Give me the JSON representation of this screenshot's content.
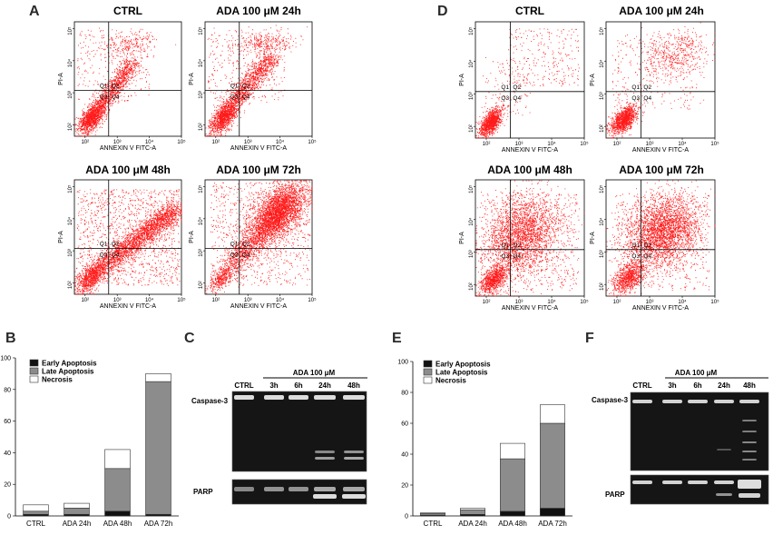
{
  "panels": {
    "A": "A",
    "B": "B",
    "C": "C",
    "D": "D",
    "E": "E",
    "F": "F"
  },
  "flow_plots": {
    "x_axis_label": "ANNEXIN V FITC-A",
    "y_axis_label": "PI-A",
    "tick_labels": [
      "10²",
      "10³",
      "10⁴",
      "10⁵"
    ],
    "quadrant_labels": [
      "Q1",
      "Q2",
      "Q3",
      "Q4"
    ],
    "set_A": [
      {
        "title": "CTRL"
      },
      {
        "title": "ADA 100 μM 24h"
      },
      {
        "title": "ADA 100 μM 48h"
      },
      {
        "title": "ADA 100 μM 72h"
      }
    ],
    "set_D": [
      {
        "title": "CTRL"
      },
      {
        "title": "ADA 100 μM 24h"
      },
      {
        "title": "ADA 100 μM 48h"
      },
      {
        "title": "ADA 100 μM 72h"
      }
    ]
  },
  "colors": {
    "dots": "#ff1a1a",
    "early": "#111111",
    "late": "#8c8c8c",
    "necrosis": "#ffffff",
    "gel": "#151515",
    "band": "#e8e8e8"
  },
  "chart_data": [
    {
      "type": "bar",
      "panel": "B",
      "stacked": true,
      "categories": [
        "CTRL",
        "ADA 24h",
        "ADA 48h",
        "ADA 72h"
      ],
      "series": [
        {
          "name": "Early Apoptosis",
          "values": [
            1,
            1,
            3,
            1
          ]
        },
        {
          "name": "Late Apoptosis",
          "values": [
            2,
            4,
            27,
            84
          ]
        },
        {
          "name": "Necrosis",
          "values": [
            4,
            3,
            12,
            5
          ]
        }
      ],
      "ylim": [
        0,
        100
      ],
      "yticks": [
        "0",
        "20",
        "40",
        "60",
        "80",
        "100"
      ],
      "legend": "top-left"
    },
    {
      "type": "bar",
      "panel": "E",
      "stacked": true,
      "categories": [
        "CTRL",
        "ADA 24h",
        "ADA 48h",
        "ADA 72h"
      ],
      "series": [
        {
          "name": "Early Apoptosis",
          "values": [
            0.5,
            1,
            3,
            5
          ]
        },
        {
          "name": "Late Apoptosis",
          "values": [
            1,
            3,
            34,
            55
          ]
        },
        {
          "name": "Necrosis",
          "values": [
            0.5,
            1,
            10,
            12
          ]
        }
      ],
      "ylim": [
        0,
        100
      ],
      "yticks": [
        "0",
        "20",
        "40",
        "60",
        "80",
        "100"
      ],
      "legend": "top-left"
    }
  ],
  "blots": {
    "C": {
      "treatment": "ADA 100 μM",
      "lanes": [
        "CTRL",
        "3h",
        "6h",
        "24h",
        "48h"
      ],
      "rows": [
        "Caspase-3",
        "PARP"
      ]
    },
    "F": {
      "treatment": "ADA 100 μM",
      "lanes": [
        "CTRL",
        "3h",
        "6h",
        "24h",
        "48h"
      ],
      "rows": [
        "Caspase-3",
        "PARP"
      ]
    }
  }
}
